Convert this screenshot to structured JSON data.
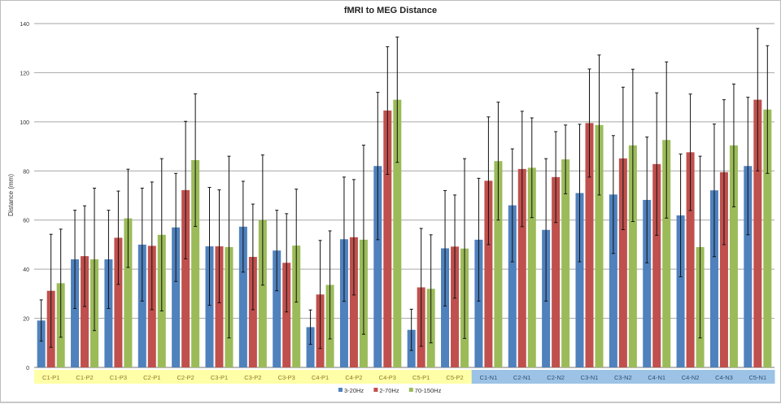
{
  "chart_data": {
    "type": "bar",
    "title": "fMRI to MEG Distance",
    "xlabel": "",
    "ylabel": "Distance (mm)",
    "ylim": [
      0,
      140
    ],
    "yticks": [
      0,
      20,
      40,
      60,
      80,
      100,
      120,
      140
    ],
    "grid": true,
    "legend_position": "bottom",
    "error_bars": true,
    "categories": [
      "C1-P1",
      "C1-P2",
      "C1-P3",
      "C2-P1",
      "C2-P2",
      "C3-P1",
      "C3-P2",
      "C3-P3",
      "C4-P1",
      "C4-P2",
      "C4-P3",
      "C5-P1",
      "C5-P2",
      "C1-N1",
      "C2-N1",
      "C2-N2",
      "C3-N1",
      "C3-N2",
      "C4-N1",
      "C4-N2",
      "C4-N3",
      "C5-N1"
    ],
    "category_group_colors": {
      "P": "#ffffa8",
      "N": "#9cc3e6"
    },
    "series": [
      {
        "name": "3-20Hz",
        "color": "#4f81bd",
        "values": [
          19.1,
          44,
          44,
          50,
          57,
          49.3,
          57.3,
          47.6,
          16.4,
          52.2,
          82,
          15.3,
          48.5,
          52,
          66,
          56,
          71,
          70.4,
          68.2,
          61.9,
          72.1,
          82
        ],
        "errors": [
          8.4,
          20,
          20,
          23,
          22,
          24,
          18.5,
          16.4,
          7,
          25.3,
          30,
          8.4,
          23.5,
          25,
          23,
          29,
          28,
          24,
          25.6,
          25,
          27,
          28
        ]
      },
      {
        "name": "2-70Hz",
        "color": "#c0504d",
        "values": [
          31.2,
          45.3,
          52.8,
          49.5,
          72.2,
          49.3,
          45,
          42.6,
          29.7,
          53,
          104.6,
          32.6,
          49.2,
          76,
          80.8,
          77.5,
          99.5,
          85.1,
          82.8,
          87.6,
          79.5,
          109
        ],
        "errors": [
          23,
          20.5,
          19,
          26,
          28,
          23,
          21.5,
          20,
          22,
          23.5,
          26,
          24,
          21,
          26,
          23.5,
          18.5,
          22,
          29,
          29,
          23.7,
          29.5,
          29
        ]
      },
      {
        "name": "70-150Hz",
        "color": "#9bbb59",
        "values": [
          34.3,
          44,
          60.7,
          54,
          84.4,
          49,
          60,
          49.6,
          33.6,
          52,
          109,
          32,
          48.4,
          84,
          81.3,
          84.7,
          98.7,
          90.4,
          92.6,
          49,
          90.4,
          105
        ],
        "errors": [
          22,
          29,
          20,
          31,
          27,
          37,
          26.5,
          23,
          22,
          38.5,
          25.5,
          22,
          36.6,
          24,
          20.3,
          14,
          28.5,
          31,
          31.8,
          37,
          25,
          26
        ]
      }
    ]
  }
}
